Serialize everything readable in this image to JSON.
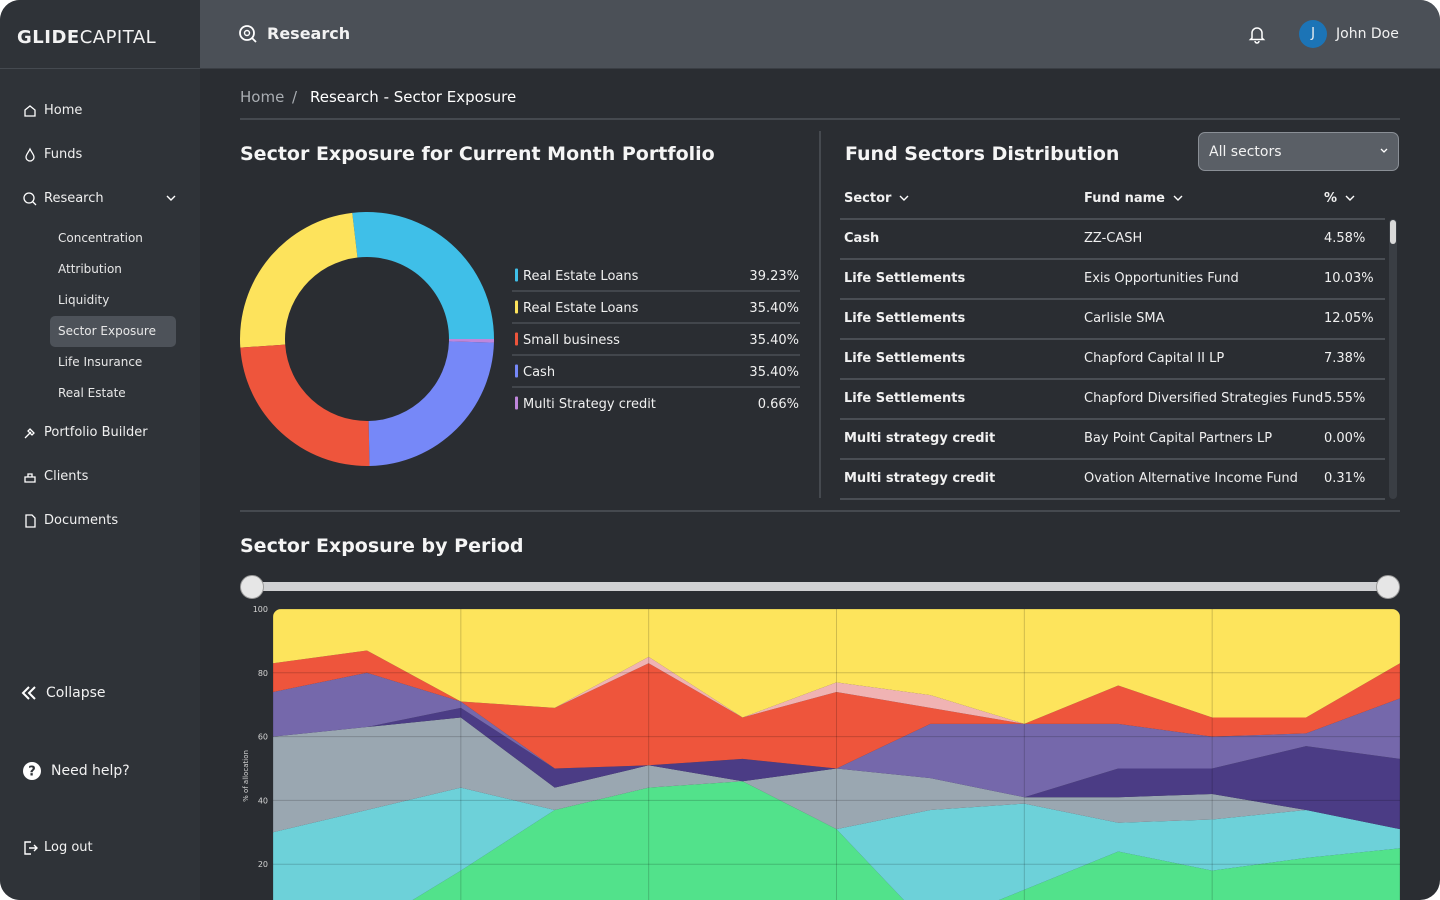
{
  "brand": {
    "strong": "GLIDE",
    "light": "CAPITAL"
  },
  "header": {
    "title": "Research",
    "avatar": "J",
    "user": "John Doe"
  },
  "sidebar": {
    "items": [
      {
        "label": "Home"
      },
      {
        "label": "Funds"
      },
      {
        "label": "Research",
        "children": [
          "Concentration",
          "Attribution",
          "Liquidity",
          "Sector Exposure",
          "Life Insurance",
          "Real Estate"
        ],
        "active_child": 3
      },
      {
        "label": "Portfolio Builder"
      },
      {
        "label": "Clients"
      },
      {
        "label": "Documents"
      }
    ],
    "collapse": "Collapse",
    "help": "Need help?",
    "logout": "Log out"
  },
  "breadcrumb": {
    "items": [
      "Home",
      "Research - Sector Exposure"
    ],
    "separator": "/"
  },
  "table": {
    "title": "Fund Sectors Distribution",
    "filter": "All sectors",
    "columns": [
      "Sector",
      "Fund name",
      "%"
    ],
    "rows": [
      [
        "Cash",
        "ZZ-CASH",
        "4.58%"
      ],
      [
        "Life Settlements",
        "Exis Opportunities Fund",
        "10.03%"
      ],
      [
        "Life Settlements",
        "Carlisle SMA",
        "12.05%"
      ],
      [
        "Life Settlements",
        "Chapford Capital II LP",
        "7.38%"
      ],
      [
        "Life Settlements",
        "Chapford Diversified Strategies Fund",
        "5.55%"
      ],
      [
        "Multi strategy credit",
        "Bay Point Capital Partners LP",
        "0.00%"
      ],
      [
        "Multi strategy credit",
        "Ovation Alternative Income Fund",
        "0.31%"
      ]
    ]
  },
  "chart_data": [
    {
      "type": "donut",
      "title": "Sector Exposure for Current Month Portfolio",
      "categories": [
        "Real Estate Loans",
        "Real Estate Loans",
        "Small business",
        "Cash",
        "Multi Strategy credit"
      ],
      "values": [
        39.23,
        35.4,
        35.4,
        35.4,
        0.66
      ],
      "value_labels": [
        "39.23%",
        "35.40%",
        "35.40%",
        "35.40%",
        "0.66%"
      ],
      "colors": [
        "#3fbfe8",
        "#fde35c",
        "#ee553c",
        "#7688f8",
        "#bf86dc"
      ]
    },
    {
      "type": "area",
      "stacked": true,
      "title": "Sector Exposure by Period",
      "ylabel": "% of allocation",
      "categories": [
        null,
        null,
        null,
        null,
        null,
        null,
        null,
        null,
        null,
        null,
        null,
        null,
        null
      ],
      "ylim": [
        0,
        100
      ],
      "yticks": [
        20,
        40,
        60,
        80,
        100
      ],
      "grid": true,
      "series": [
        {
          "color": "#52e28b",
          "values": [
            0,
            0,
            18,
            37,
            44,
            46,
            31,
            0,
            12,
            24,
            18,
            22,
            25
          ]
        },
        {
          "color": "#6dd1d9",
          "values": [
            30,
            37,
            26,
            0,
            0,
            0,
            0,
            37,
            27,
            9,
            16,
            15,
            6
          ]
        },
        {
          "color": "#9aa7b1",
          "values": [
            30,
            26,
            22,
            7,
            7,
            0,
            19,
            10,
            2,
            8,
            8,
            0,
            0
          ]
        },
        {
          "color": "#4b3c85",
          "values": [
            0,
            0,
            3,
            6,
            0,
            7,
            0,
            0,
            0,
            9,
            8,
            20,
            22
          ]
        },
        {
          "color": "#7568ab",
          "values": [
            14,
            17,
            2,
            0,
            0,
            0,
            0,
            17,
            23,
            14,
            10,
            4,
            19
          ]
        },
        {
          "color": "#ee553c",
          "values": [
            9,
            7,
            0,
            19,
            32,
            13,
            24,
            5,
            0,
            12,
            6,
            5,
            11
          ]
        },
        {
          "color": "#f0b3b3",
          "values": [
            0,
            0,
            0,
            0,
            2,
            0,
            3,
            4,
            0,
            0,
            0,
            0,
            0
          ]
        },
        {
          "color": "#fde45c",
          "values": [
            17,
            13,
            29,
            31,
            15,
            34,
            23,
            27,
            36,
            24,
            34,
            34,
            17
          ]
        }
      ]
    }
  ]
}
